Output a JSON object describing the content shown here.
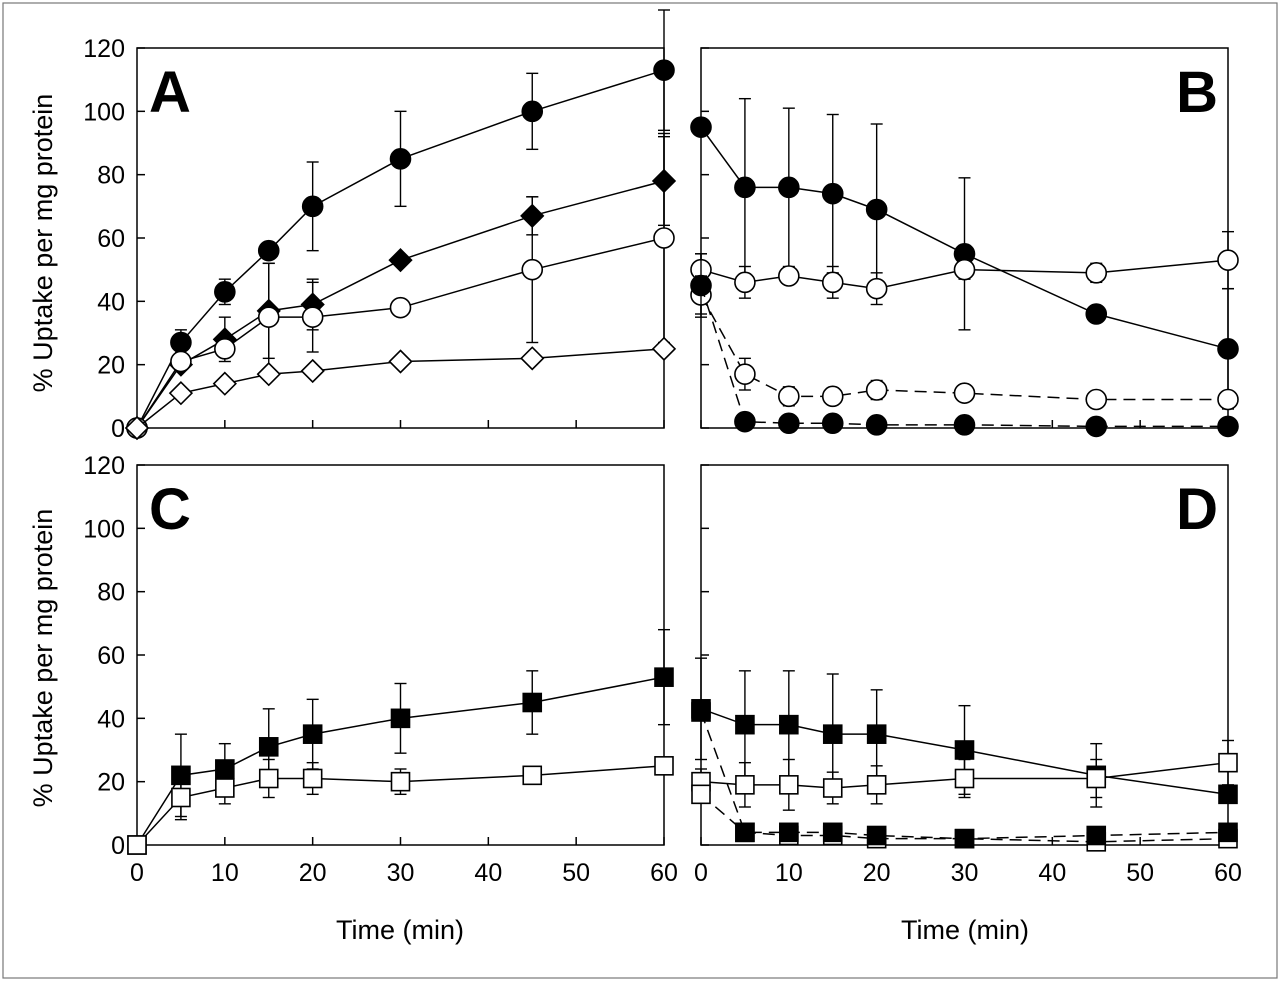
{
  "chart_data": [
    {
      "type": "line",
      "panel_label": "A",
      "xlabel": "",
      "ylabel": "% Uptake per mg protein",
      "xlim": [
        0,
        60
      ],
      "ylim": [
        0,
        120
      ],
      "xticks": [
        0,
        10,
        20,
        30,
        40,
        50,
        60
      ],
      "yticks": [
        0,
        20,
        40,
        60,
        80,
        100,
        120
      ],
      "x_tick_labels": [],
      "y_tick_labels": [
        "0",
        "20",
        "40",
        "60",
        "80",
        "100",
        "120"
      ],
      "legend": "none",
      "grid": false,
      "series": [
        {
          "marker": "circle-filled",
          "dash": "solid",
          "x": [
            0,
            5,
            10,
            15,
            20,
            30,
            45,
            60
          ],
          "y": [
            0,
            27,
            43,
            56,
            70,
            85,
            100,
            113
          ],
          "err": [
            0,
            4,
            4,
            0,
            14,
            15,
            12,
            19
          ]
        },
        {
          "marker": "diamond-filled",
          "dash": "solid",
          "x": [
            0,
            5,
            10,
            15,
            20,
            30,
            45,
            60
          ],
          "y": [
            0,
            20,
            28,
            37,
            39,
            53,
            67,
            78
          ],
          "err": [
            0,
            0,
            7,
            15,
            8,
            0,
            6,
            14
          ]
        },
        {
          "marker": "circle-open",
          "dash": "solid",
          "x": [
            0,
            5,
            10,
            15,
            20,
            30,
            45,
            60
          ],
          "y": [
            0,
            21,
            25,
            35,
            35,
            38,
            50,
            60
          ],
          "err": [
            0,
            0,
            0,
            17,
            11,
            0,
            23,
            33
          ]
        },
        {
          "marker": "diamond-open",
          "dash": "solid",
          "x": [
            0,
            5,
            10,
            15,
            20,
            30,
            45,
            60
          ],
          "y": [
            0,
            11,
            14,
            17,
            18,
            21,
            22,
            25
          ],
          "err": [
            0,
            0,
            0,
            0,
            0,
            0,
            0,
            0
          ]
        }
      ]
    },
    {
      "type": "line",
      "panel_label": "B",
      "xlabel": "",
      "ylabel": "",
      "xlim": [
        0,
        60
      ],
      "ylim": [
        0,
        120
      ],
      "xticks": [
        0,
        10,
        20,
        30,
        40,
        50,
        60
      ],
      "yticks": [
        0,
        20,
        40,
        60,
        80,
        100,
        120
      ],
      "x_tick_labels": [],
      "y_tick_labels": [],
      "legend": "none",
      "grid": false,
      "series": [
        {
          "marker": "circle-filled",
          "dash": "solid",
          "x": [
            0,
            5,
            10,
            15,
            20,
            30,
            45,
            60
          ],
          "y": [
            95,
            76,
            76,
            74,
            69,
            55,
            36,
            25
          ],
          "err": [
            0,
            28,
            25,
            25,
            27,
            24,
            0,
            19
          ]
        },
        {
          "marker": "circle-open",
          "dash": "solid",
          "x": [
            0,
            5,
            10,
            15,
            20,
            30,
            45,
            60
          ],
          "y": [
            50,
            46,
            48,
            46,
            44,
            50,
            49,
            53
          ],
          "err": [
            5,
            5,
            2,
            5,
            5,
            3,
            3,
            9
          ]
        },
        {
          "marker": "circle-open",
          "dash": "dashed",
          "x": [
            0,
            5,
            10,
            15,
            20,
            30,
            45,
            60
          ],
          "y": [
            42,
            17,
            10,
            10,
            12,
            11,
            9,
            9
          ],
          "err": [
            6,
            5,
            3,
            2,
            3,
            2,
            0,
            0
          ]
        },
        {
          "marker": "circle-filled",
          "dash": "dashed",
          "x": [
            0,
            5,
            10,
            15,
            20,
            30,
            45,
            60
          ],
          "y": [
            45,
            2,
            1.5,
            1.5,
            1,
            1,
            0.5,
            0.5
          ],
          "err": [
            10,
            0,
            0,
            0,
            0,
            0,
            0,
            0
          ]
        }
      ]
    },
    {
      "type": "line",
      "panel_label": "C",
      "xlabel": "Time (min)",
      "ylabel": "% Uptake per mg protein",
      "xlim": [
        0,
        60
      ],
      "ylim": [
        0,
        120
      ],
      "xticks": [
        0,
        10,
        20,
        30,
        40,
        50,
        60
      ],
      "yticks": [
        0,
        20,
        40,
        60,
        80,
        100,
        120
      ],
      "x_tick_labels": [
        "0",
        "10",
        "20",
        "30",
        "40",
        "50",
        "60"
      ],
      "y_tick_labels": [
        "0",
        "20",
        "40",
        "60",
        "80",
        "100",
        "120"
      ],
      "legend": "none",
      "grid": false,
      "series": [
        {
          "marker": "square-filled",
          "dash": "solid",
          "x": [
            0,
            5,
            10,
            15,
            20,
            30,
            45,
            60
          ],
          "y": [
            0,
            22,
            24,
            31,
            35,
            40,
            45,
            53
          ],
          "err": [
            0,
            13,
            8,
            12,
            11,
            11,
            10,
            15
          ]
        },
        {
          "marker": "square-open",
          "dash": "solid",
          "x": [
            0,
            5,
            10,
            15,
            20,
            30,
            45,
            60
          ],
          "y": [
            0,
            15,
            18,
            21,
            21,
            20,
            22,
            25
          ],
          "err": [
            0,
            7,
            5,
            6,
            5,
            4,
            0,
            0
          ]
        }
      ]
    },
    {
      "type": "line",
      "panel_label": "D",
      "xlabel": "Time (min)",
      "ylabel": "",
      "xlim": [
        0,
        60
      ],
      "ylim": [
        0,
        120
      ],
      "xticks": [
        0,
        10,
        20,
        30,
        40,
        50,
        60
      ],
      "yticks": [
        0,
        20,
        40,
        60,
        80,
        100,
        120
      ],
      "x_tick_labels": [
        "0",
        "10",
        "20",
        "30",
        "40",
        "50",
        "60"
      ],
      "y_tick_labels": [],
      "legend": "none",
      "grid": false,
      "series": [
        {
          "marker": "square-filled",
          "dash": "solid",
          "x": [
            0,
            5,
            10,
            15,
            20,
            30,
            45,
            60
          ],
          "y": [
            43,
            38,
            38,
            35,
            35,
            30,
            22,
            16
          ],
          "err": [
            16,
            17,
            17,
            19,
            14,
            14,
            10,
            0
          ]
        },
        {
          "marker": "square-open",
          "dash": "solid",
          "x": [
            0,
            5,
            10,
            15,
            20,
            30,
            45,
            60
          ],
          "y": [
            20,
            19,
            19,
            18,
            19,
            21,
            21,
            26
          ],
          "err": [
            4,
            7,
            8,
            5,
            6,
            6,
            6,
            7
          ]
        },
        {
          "marker": "square-open",
          "dash": "dashed",
          "x": [
            0,
            5,
            10,
            15,
            20,
            30,
            45,
            60
          ],
          "y": [
            16,
            4,
            3,
            3,
            2,
            2,
            1,
            2
          ],
          "err": [
            0,
            0,
            0,
            0,
            0,
            0,
            0,
            0
          ]
        },
        {
          "marker": "square-filled",
          "dash": "dashed",
          "x": [
            0,
            5,
            10,
            15,
            20,
            30,
            45,
            60
          ],
          "y": [
            42,
            4,
            4,
            4,
            3,
            2,
            3,
            4
          ],
          "err": [
            0,
            0,
            0,
            0,
            0,
            0,
            0,
            0
          ]
        }
      ]
    }
  ]
}
